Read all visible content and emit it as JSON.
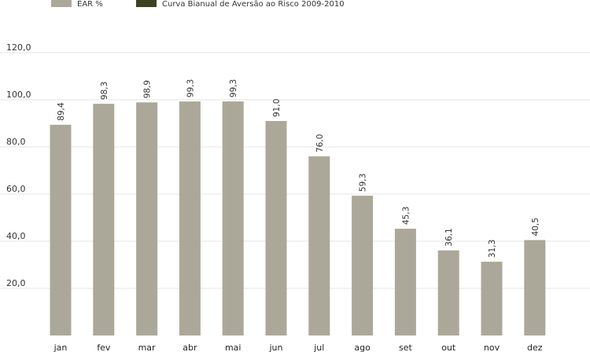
{
  "chart_data": {
    "type": "bar",
    "categories": [
      "jan",
      "fev",
      "mar",
      "abr",
      "mai",
      "jun",
      "jul",
      "ago",
      "set",
      "out",
      "nov",
      "dez"
    ],
    "series": [
      {
        "name": "EAR %",
        "color": "#aca899",
        "values": [
          89.4,
          98.3,
          98.9,
          99.3,
          99.3,
          91.0,
          76.0,
          59.3,
          45.3,
          36.1,
          31.3,
          40.5
        ],
        "labels": [
          "89,4",
          "98,3",
          "98,9",
          "99,3",
          "99,3",
          "91,0",
          "76,0",
          "59,3",
          "45,3",
          "36,1",
          "31,3",
          "40,5"
        ]
      }
    ],
    "legend": [
      {
        "label": "EAR %",
        "color": "#aca899"
      },
      {
        "label": "Curva Bianual de Aversão ao Risco 2009-2010",
        "color": "#3d4221"
      }
    ],
    "yticks": [
      20,
      40,
      60,
      80,
      100,
      120
    ],
    "ytick_labels": [
      "20,0",
      "40,0",
      "60,0",
      "80,0",
      "100,0",
      "120,0"
    ],
    "ylim": [
      0,
      120
    ],
    "grid": true,
    "legend_position": "top-left"
  }
}
